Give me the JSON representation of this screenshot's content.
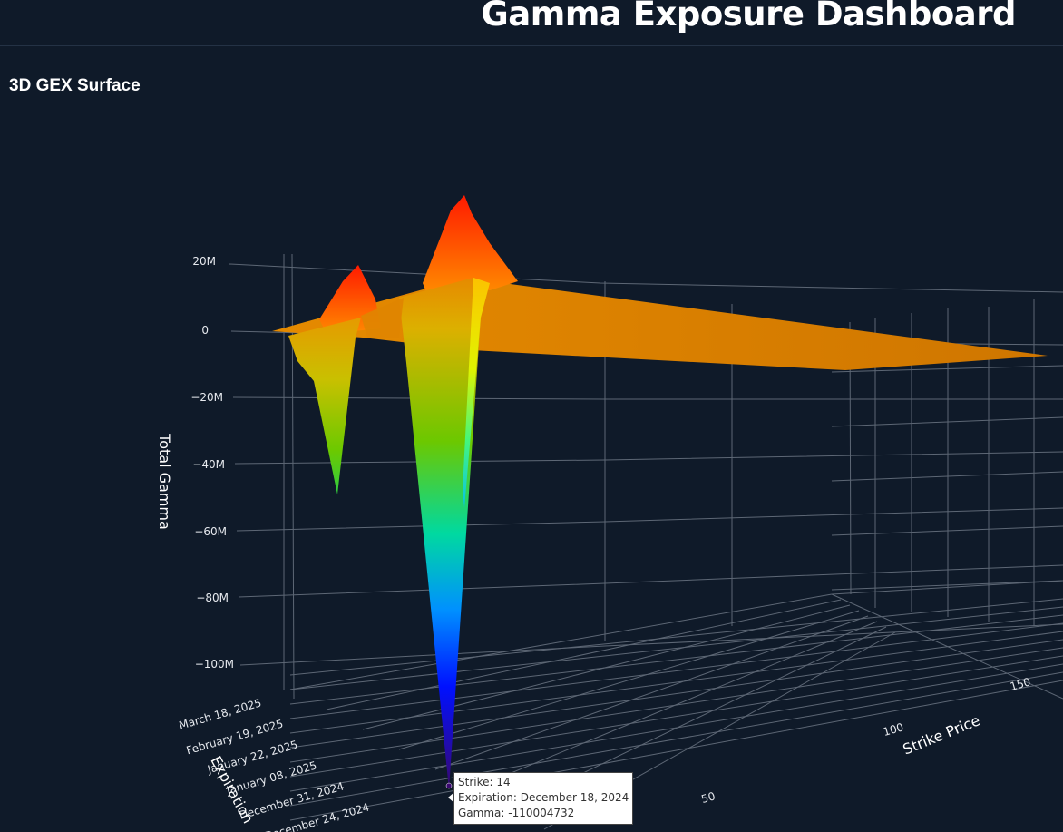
{
  "header": {
    "title": "Gamma Exposure Dashboard"
  },
  "panel": {
    "title": "3D GEX Surface"
  },
  "chart_data": {
    "type": "surface",
    "title": "",
    "zlabel": "Total Gamma",
    "xlabel": "Strike Price",
    "ylabel": "Expiration",
    "z_ticks": [
      "20M",
      "0",
      "−20M",
      "−40M",
      "−60M",
      "−80M",
      "−100M"
    ],
    "x_ticks": [
      "50",
      "100",
      "150"
    ],
    "y_ticks": [
      "March 18, 2025",
      "February 19, 2025",
      "January 22, 2025",
      "January 08, 2025",
      "December 31, 2024",
      "December 24, 2024"
    ],
    "colorscale": [
      "#3a0a6b",
      "#0000ff",
      "#00a0ff",
      "#00ff9a",
      "#6fd000",
      "#e6e600",
      "#ff8c00",
      "#ff0000"
    ],
    "features": [
      {
        "label": "main trough",
        "strike": 14,
        "expiration": "December 18, 2024",
        "gamma": -110004732
      },
      {
        "label": "secondary trough",
        "gamma": -48000000
      },
      {
        "label": "main peak",
        "gamma": 31000000
      },
      {
        "label": "secondary peak",
        "gamma": 17000000
      }
    ]
  },
  "tooltip": {
    "strike": "Strike: 14",
    "expiration": "Expiration: December 18, 2024",
    "gamma": "Gamma: -110004732"
  }
}
